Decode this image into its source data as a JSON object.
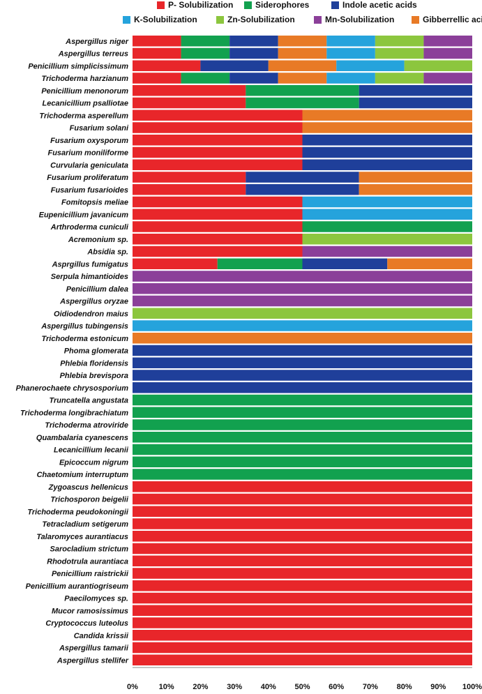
{
  "chart_data": {
    "type": "bar",
    "orientation": "horizontal",
    "stacking": "percent",
    "title": "",
    "xlabel": "",
    "ylabel": "",
    "xlim": [
      0,
      100
    ],
    "x_ticks": [
      "0%",
      "10%",
      "20%",
      "30%",
      "40%",
      "50%",
      "60%",
      "70%",
      "80%",
      "90%",
      "100%"
    ],
    "legend_position": "top",
    "grid": false,
    "categories": [
      "Aspergillus niger",
      "Aspergillus terreus",
      "Penicillium simplicissimum",
      "Trichoderma harzianum",
      "Penicillium menonorum",
      "Lecanicillium psalliotae",
      "Trichoderma asperellum",
      "Fusarium solani",
      "Fusarium oxysporum",
      "Fusarium moniliforme",
      "Curvularia geniculata",
      "Fusarium proliferatum",
      "Fusarium fusarioides",
      "Fomitopsis meliae",
      "Eupenicillium javanicum",
      "Arthroderma cuniculi",
      "Acremonium sp.",
      "Absidia sp.",
      "Asprgillus fumigatus",
      "Serpula himantioides",
      "Penicillium dalea",
      "Aspergillus oryzae",
      "Oidiodendron maius",
      "Aspergillus tubingensis",
      "Trichoderma estonicum",
      "Phoma glomerata",
      "Phlebia floridensis",
      "Phlebia brevispora",
      "Phanerochaete chrysosporium",
      "Truncatella angustata",
      "Trichoderma longibrachiatum",
      "Trichoderma atroviride",
      "Quambalaria cyanescens",
      "Lecanicillium lecanii",
      "Epicoccum nigrum",
      "Chaetomium interruptum",
      "Zygoascus hellenicus",
      "Trichosporon beigelii",
      "Trichoderma peudokoningii",
      "Tetracladium setigerum",
      "Talaromyces aurantiacus",
      "Sarocladium strictum",
      "Rhodotrula aurantiaca",
      "Penicillium raistrickii",
      "Penicillium  aurantiogriseum",
      "Paecilomyces sp.",
      "Mucor ramosissimus",
      "Cryptococcus luteolus",
      "Candida krissii",
      "Aspergillus tamarii",
      "Aspergillus stellifer"
    ],
    "series": [
      {
        "name": "P- Solubilization",
        "color": "#e8262a",
        "values": [
          1,
          1,
          1,
          1,
          1,
          1,
          1,
          1,
          1,
          1,
          1,
          1,
          1,
          1,
          1,
          1,
          1,
          1,
          1,
          0,
          0,
          0,
          0,
          0,
          0,
          0,
          0,
          0,
          0,
          0,
          0,
          0,
          0,
          0,
          0,
          0,
          1,
          1,
          1,
          1,
          1,
          1,
          1,
          1,
          1,
          1,
          1,
          1,
          1,
          1,
          1
        ]
      },
      {
        "name": "Siderophores",
        "color": "#12a14f",
        "values": [
          1,
          1,
          0,
          1,
          1,
          1,
          0,
          0,
          0,
          0,
          0,
          0,
          0,
          0,
          0,
          1,
          0,
          0,
          1,
          0,
          0,
          0,
          0,
          0,
          0,
          0,
          0,
          0,
          0,
          1,
          1,
          1,
          1,
          1,
          1,
          1,
          0,
          0,
          0,
          0,
          0,
          0,
          0,
          0,
          0,
          0,
          0,
          0,
          0,
          0,
          0
        ]
      },
      {
        "name": "Indole acetic acids",
        "color": "#1f3f9a",
        "values": [
          1,
          1,
          1,
          1,
          1,
          1,
          0,
          0,
          1,
          1,
          1,
          1,
          1,
          0,
          0,
          0,
          0,
          0,
          1,
          0,
          0,
          0,
          0,
          0,
          0,
          1,
          1,
          1,
          1,
          0,
          0,
          0,
          0,
          0,
          0,
          0,
          0,
          0,
          0,
          0,
          0,
          0,
          0,
          0,
          0,
          0,
          0,
          0,
          0,
          0,
          0
        ]
      },
      {
        "name": "Gibberrellic acid",
        "color": "#e87a26",
        "values": [
          1,
          1,
          1,
          1,
          0,
          0,
          1,
          1,
          0,
          0,
          0,
          1,
          1,
          0,
          0,
          0,
          0,
          0,
          1,
          0,
          0,
          0,
          0,
          0,
          1,
          0,
          0,
          0,
          0,
          0,
          0,
          0,
          0,
          0,
          0,
          0,
          0,
          0,
          0,
          0,
          0,
          0,
          0,
          0,
          0,
          0,
          0,
          0,
          0,
          0,
          0
        ]
      },
      {
        "name": "K-Solubilization",
        "color": "#25a3dc",
        "values": [
          1,
          1,
          1,
          1,
          0,
          0,
          0,
          0,
          0,
          0,
          0,
          0,
          0,
          1,
          1,
          0,
          0,
          0,
          0,
          0,
          0,
          0,
          0,
          1,
          0,
          0,
          0,
          0,
          0,
          0,
          0,
          0,
          0,
          0,
          0,
          0,
          0,
          0,
          0,
          0,
          0,
          0,
          0,
          0,
          0,
          0,
          0,
          0,
          0,
          0,
          0
        ]
      },
      {
        "name": "Zn-Solubilization",
        "color": "#8cc63e",
        "values": [
          1,
          1,
          1,
          1,
          0,
          0,
          0,
          0,
          0,
          0,
          0,
          0,
          0,
          0,
          0,
          0,
          1,
          0,
          0,
          0,
          0,
          0,
          1,
          0,
          0,
          0,
          0,
          0,
          0,
          0,
          0,
          0,
          0,
          0,
          0,
          0,
          0,
          0,
          0,
          0,
          0,
          0,
          0,
          0,
          0,
          0,
          0,
          0,
          0,
          0,
          0
        ]
      },
      {
        "name": "Mn-Solubilization",
        "color": "#8b3f99",
        "values": [
          1,
          1,
          0,
          1,
          0,
          0,
          0,
          0,
          0,
          0,
          0,
          0,
          0,
          0,
          0,
          0,
          0,
          1,
          0,
          1,
          1,
          1,
          0,
          0,
          0,
          0,
          0,
          0,
          0,
          0,
          0,
          0,
          0,
          0,
          0,
          0,
          0,
          0,
          0,
          0,
          0,
          0,
          0,
          0,
          0,
          0,
          0,
          0,
          0,
          0,
          0
        ]
      }
    ]
  },
  "legend": {
    "row1": [
      "P- Solubilization",
      "Siderophores",
      "Indole acetic acids"
    ],
    "row2": [
      "K-Solubilization",
      "Zn-Solubilization",
      "Mn-Solubilization",
      "Gibberrellic acid"
    ]
  }
}
